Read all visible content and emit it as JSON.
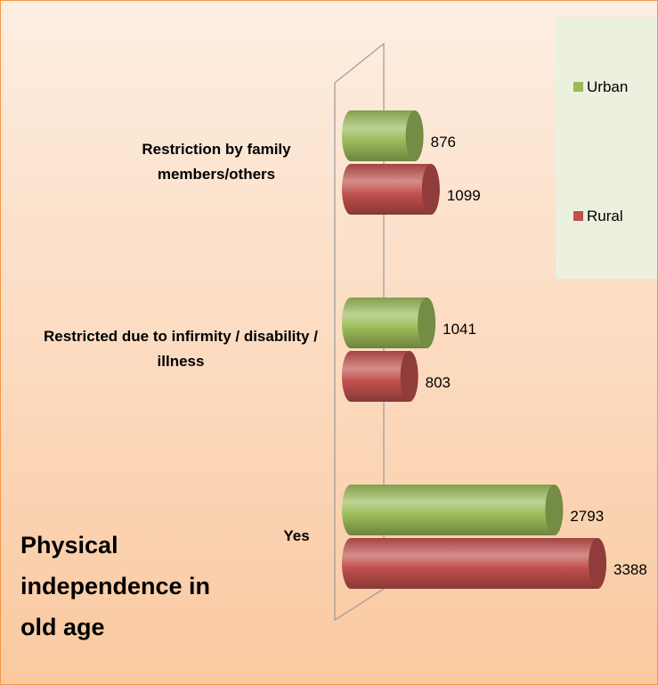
{
  "chart_data": {
    "type": "bar",
    "orientation": "horizontal",
    "title": "Physical independence in old age",
    "categories": [
      "Restriction by family members/others",
      "Restricted due to infirmity / disability / illness",
      "Yes"
    ],
    "series": [
      {
        "name": "Urban",
        "color": "#9bbb59",
        "values": [
          876,
          1041,
          2793
        ]
      },
      {
        "name": "Rural",
        "color": "#c0504d",
        "values": [
          1099,
          803,
          3388
        ]
      }
    ]
  }
}
